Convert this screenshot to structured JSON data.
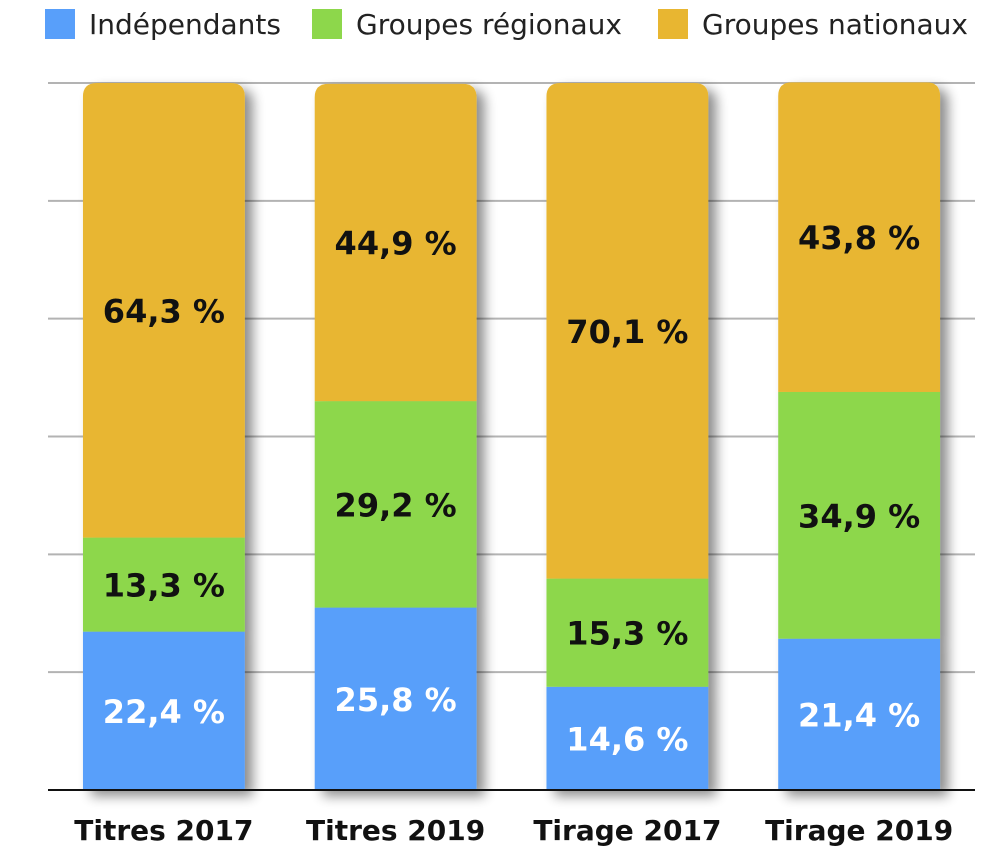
{
  "chart_data": {
    "type": "bar",
    "stacked": true,
    "categories": [
      "Titres 2017",
      "Titres 2019",
      "Tirage 2017",
      "Tirage 2019"
    ],
    "series": [
      {
        "name": "Indépendants",
        "color": "#589ffa",
        "label_color": "#ffffff",
        "values": [
          22.4,
          25.8,
          14.6,
          21.4
        ],
        "labels": [
          "22,4 %",
          "25,8 %",
          "14,6 %",
          "21,4 %"
        ]
      },
      {
        "name": "Groupes régionaux",
        "color": "#8dd74b",
        "label_color": "#111111",
        "values": [
          13.3,
          29.2,
          15.3,
          34.9
        ],
        "labels": [
          "13,3 %",
          "29,2 %",
          "15,3 %",
          "34,9 %"
        ]
      },
      {
        "name": "Groupes nationaux",
        "color": "#e8b631",
        "label_color": "#111111",
        "values": [
          64.3,
          44.9,
          70.1,
          43.8
        ],
        "labels": [
          "64,3 %",
          "44,9 %",
          "70,1 %",
          "43,8 %"
        ]
      }
    ],
    "title": "",
    "xlabel": "",
    "ylabel": "",
    "ylim": [
      0,
      100
    ],
    "y_axis_labels_shown": false,
    "grid": true,
    "legend": "top"
  }
}
